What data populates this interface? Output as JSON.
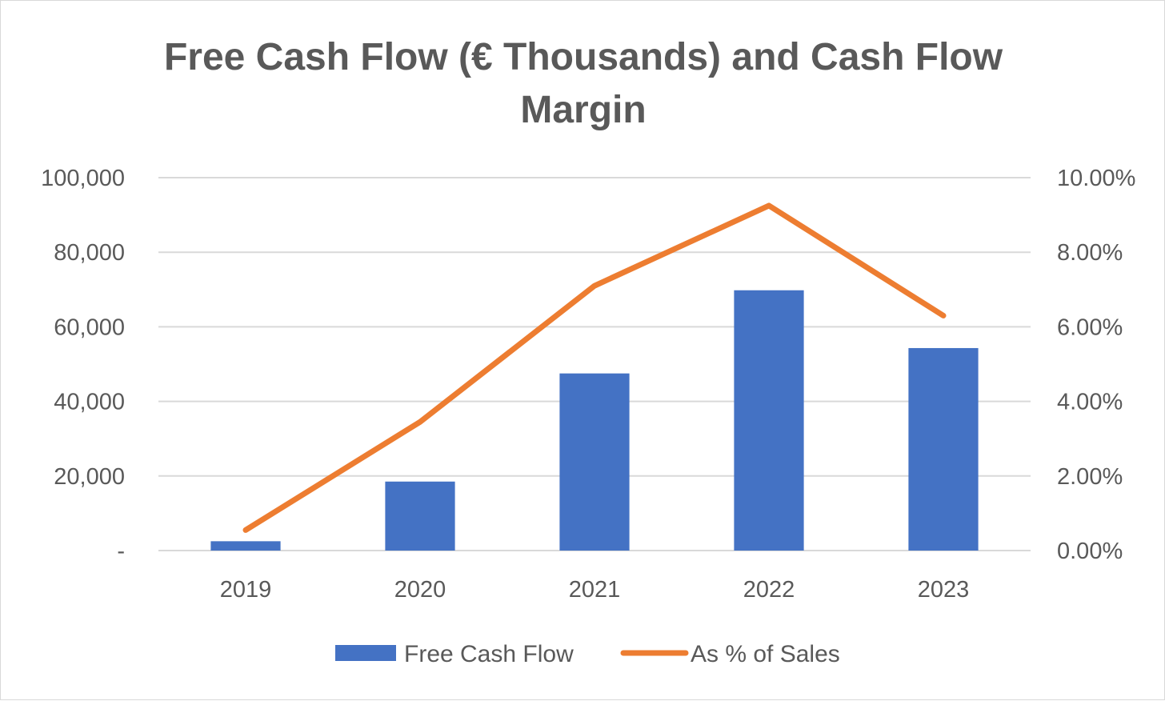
{
  "chart_data": {
    "type": "bar",
    "title": "Free Cash Flow (€ Thousands) and Cash Flow\nMargin",
    "categories": [
      "2019",
      "2020",
      "2021",
      "2022",
      "2023"
    ],
    "series": [
      {
        "name": "Free Cash Flow",
        "type": "bar",
        "axis": "left",
        "color": "#4472c4",
        "values": [
          2500,
          18500,
          47500,
          69800,
          54300
        ]
      },
      {
        "name": "As % of Sales",
        "type": "line",
        "axis": "right",
        "color": "#ed7d31",
        "values": [
          0.55,
          3.45,
          7.1,
          9.25,
          6.3
        ]
      }
    ],
    "y_left": {
      "min": 0,
      "max": 100000,
      "ticks": [
        0,
        20000,
        40000,
        60000,
        80000,
        100000
      ],
      "tick_labels": [
        "-",
        "20,000",
        "40,000",
        "60,000",
        "80,000",
        "100,000"
      ]
    },
    "y_right": {
      "min": 0,
      "max": 10,
      "ticks": [
        0,
        2,
        4,
        6,
        8,
        10
      ],
      "tick_labels": [
        "0.00%",
        "2.00%",
        "4.00%",
        "6.00%",
        "8.00%",
        "10.00%"
      ]
    },
    "grid": true,
    "legend_position": "bottom",
    "colors": {
      "gridline": "#d9d9d9",
      "text": "#595959"
    }
  }
}
